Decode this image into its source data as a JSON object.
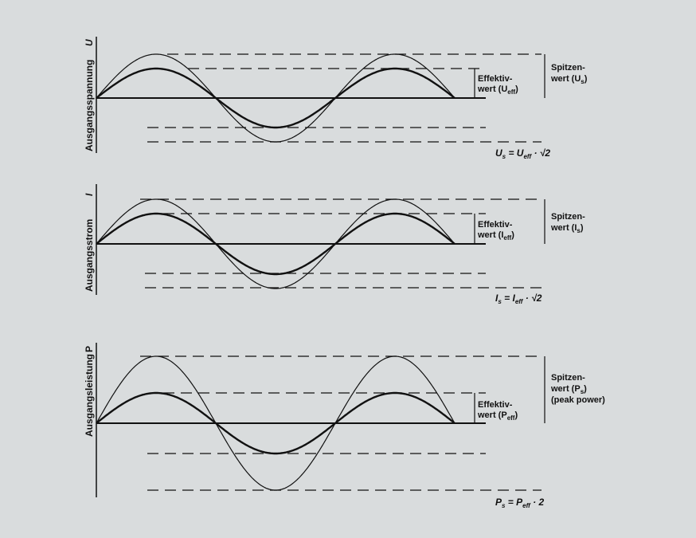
{
  "colors": {
    "background": "#d9dcdd",
    "ink": "#111111"
  },
  "panels": [
    {
      "axis_label": "Ausgangsspannung",
      "axis_symbol": "U",
      "eff_label_1": "Effektiv-",
      "eff_label_2": "wert (U",
      "eff_sub": "eff",
      "eff_close": ")",
      "peak_label_1": "Spitzen-",
      "peak_label_2": "wert (U",
      "peak_sub": "s",
      "peak_close": ")",
      "peak_label_3": "",
      "formula": "Uₛ = Uₑff · √2",
      "formula_parts": [
        "U",
        "s",
        " = U",
        "eff",
        " · √2"
      ],
      "peak_ratio": 1.414
    },
    {
      "axis_label": "Ausgangsstrom",
      "axis_symbol": "I",
      "eff_label_1": "Effektiv-",
      "eff_label_2": "wert (I",
      "eff_sub": "eff",
      "eff_close": ")",
      "peak_label_1": "Spitzen-",
      "peak_label_2": "wert (I",
      "peak_sub": "s",
      "peak_close": ")",
      "peak_label_3": "",
      "formula_parts": [
        "I",
        "s",
        " = I",
        "eff",
        " · √2"
      ],
      "peak_ratio": 1.414
    },
    {
      "axis_label": "Ausgangsleistung",
      "axis_symbol": "P",
      "eff_label_1": "Effektiv-",
      "eff_label_2": "wert (P",
      "eff_sub": "eff",
      "eff_close": ")",
      "peak_label_1": "Spitzen-",
      "peak_label_2": "wert (P",
      "peak_sub": "s",
      "peak_close": ")",
      "peak_label_3": "(peak power)",
      "formula_parts": [
        "P",
        "s",
        " = P",
        "eff",
        " · 2"
      ],
      "peak_ratio": 2
    }
  ]
}
